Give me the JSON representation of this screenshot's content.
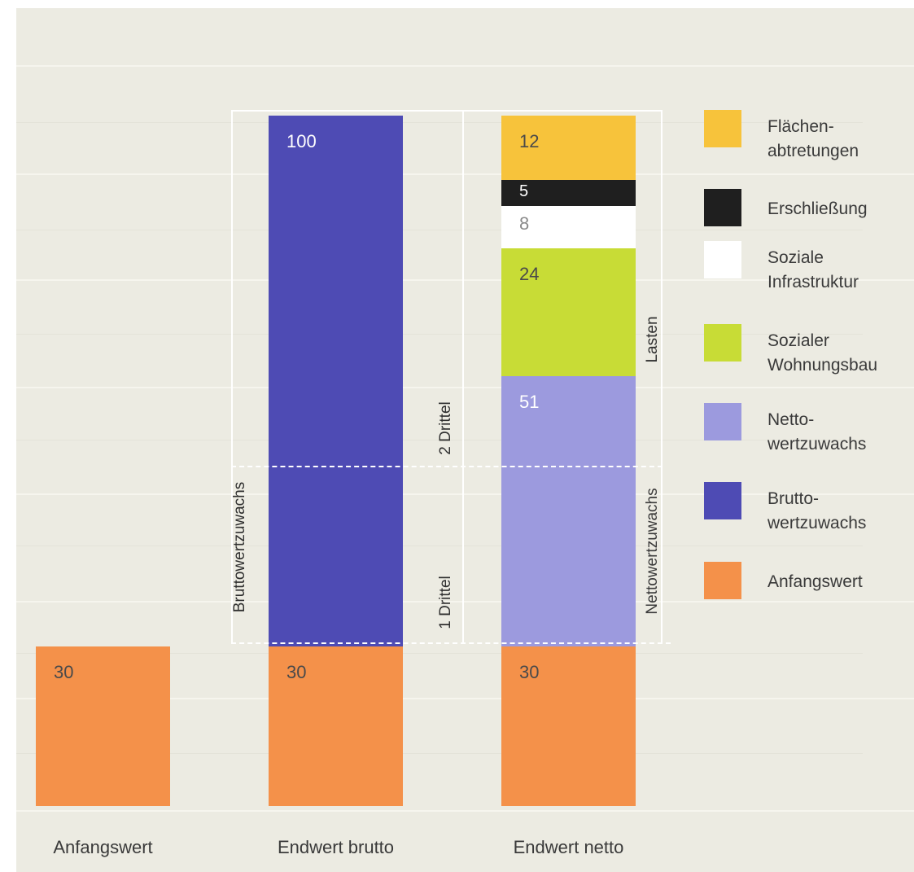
{
  "chart_data": {
    "type": "bar",
    "stacked": true,
    "title": "",
    "xlabel": "",
    "ylabel": "",
    "ylim": [
      0,
      130
    ],
    "grid": false,
    "legend_position": "right",
    "categories": [
      "Anfangswert",
      "Endwert brutto",
      "Endwert netto"
    ],
    "series": [
      {
        "name": "Anfangswert",
        "color": "#f4914a",
        "values": [
          30,
          30,
          30
        ],
        "labels": [
          "30",
          "30",
          "30"
        ]
      },
      {
        "name": "Brutto-wertzuwachs",
        "color": "#4e4bb4",
        "values": [
          0,
          100,
          0
        ],
        "labels": [
          "",
          "100",
          ""
        ]
      },
      {
        "name": "Netto-wertzuwachs",
        "color": "#9c9ade",
        "values": [
          0,
          0,
          51
        ],
        "labels": [
          "",
          "",
          "51"
        ]
      },
      {
        "name": "Sozialer Wohnungsbau",
        "color": "#c8dc36",
        "values": [
          0,
          0,
          24
        ],
        "labels": [
          "",
          "",
          "24"
        ]
      },
      {
        "name": "Soziale Infrastruktur",
        "color": "#ffffff",
        "values": [
          0,
          0,
          8
        ],
        "labels": [
          "",
          "",
          "8"
        ]
      },
      {
        "name": "Erschließung",
        "color": "#1f1f1f",
        "values": [
          0,
          0,
          5
        ],
        "labels": [
          "",
          "",
          "5"
        ]
      },
      {
        "name": "Flächen-abtretungen",
        "color": "#f7c33b",
        "values": [
          0,
          0,
          12
        ],
        "labels": [
          "",
          "",
          "12"
        ]
      }
    ],
    "legend": [
      {
        "lines": [
          "Flächen-",
          "abtretungen"
        ],
        "color": "#f7c33b"
      },
      {
        "lines": [
          "Erschließung"
        ],
        "color": "#1f1f1f"
      },
      {
        "lines": [
          "Soziale",
          "Infrastruktur"
        ],
        "color": "#ffffff"
      },
      {
        "lines": [
          "Sozialer",
          "Wohnungsbau"
        ],
        "color": "#c8dc36"
      },
      {
        "lines": [
          "Netto-",
          "wertzuwachs"
        ],
        "color": "#9c9ade"
      },
      {
        "lines": [
          "Brutto-",
          "wertzuwachs"
        ],
        "color": "#4e4bb4"
      },
      {
        "lines": [
          "Anfangswert"
        ],
        "color": "#f4914a"
      }
    ],
    "annotations": {
      "bruttowertzuwachs": "Bruttowertzuwachs",
      "zwei_drittel": "2 Drittel",
      "ein_drittel": "1 Drittel",
      "nettowertzuwachs": "Nettowertzuwachs",
      "lasten": "Lasten"
    },
    "label_colors": {
      "light": "#ffffff",
      "dark": "#4a4a4a"
    }
  }
}
